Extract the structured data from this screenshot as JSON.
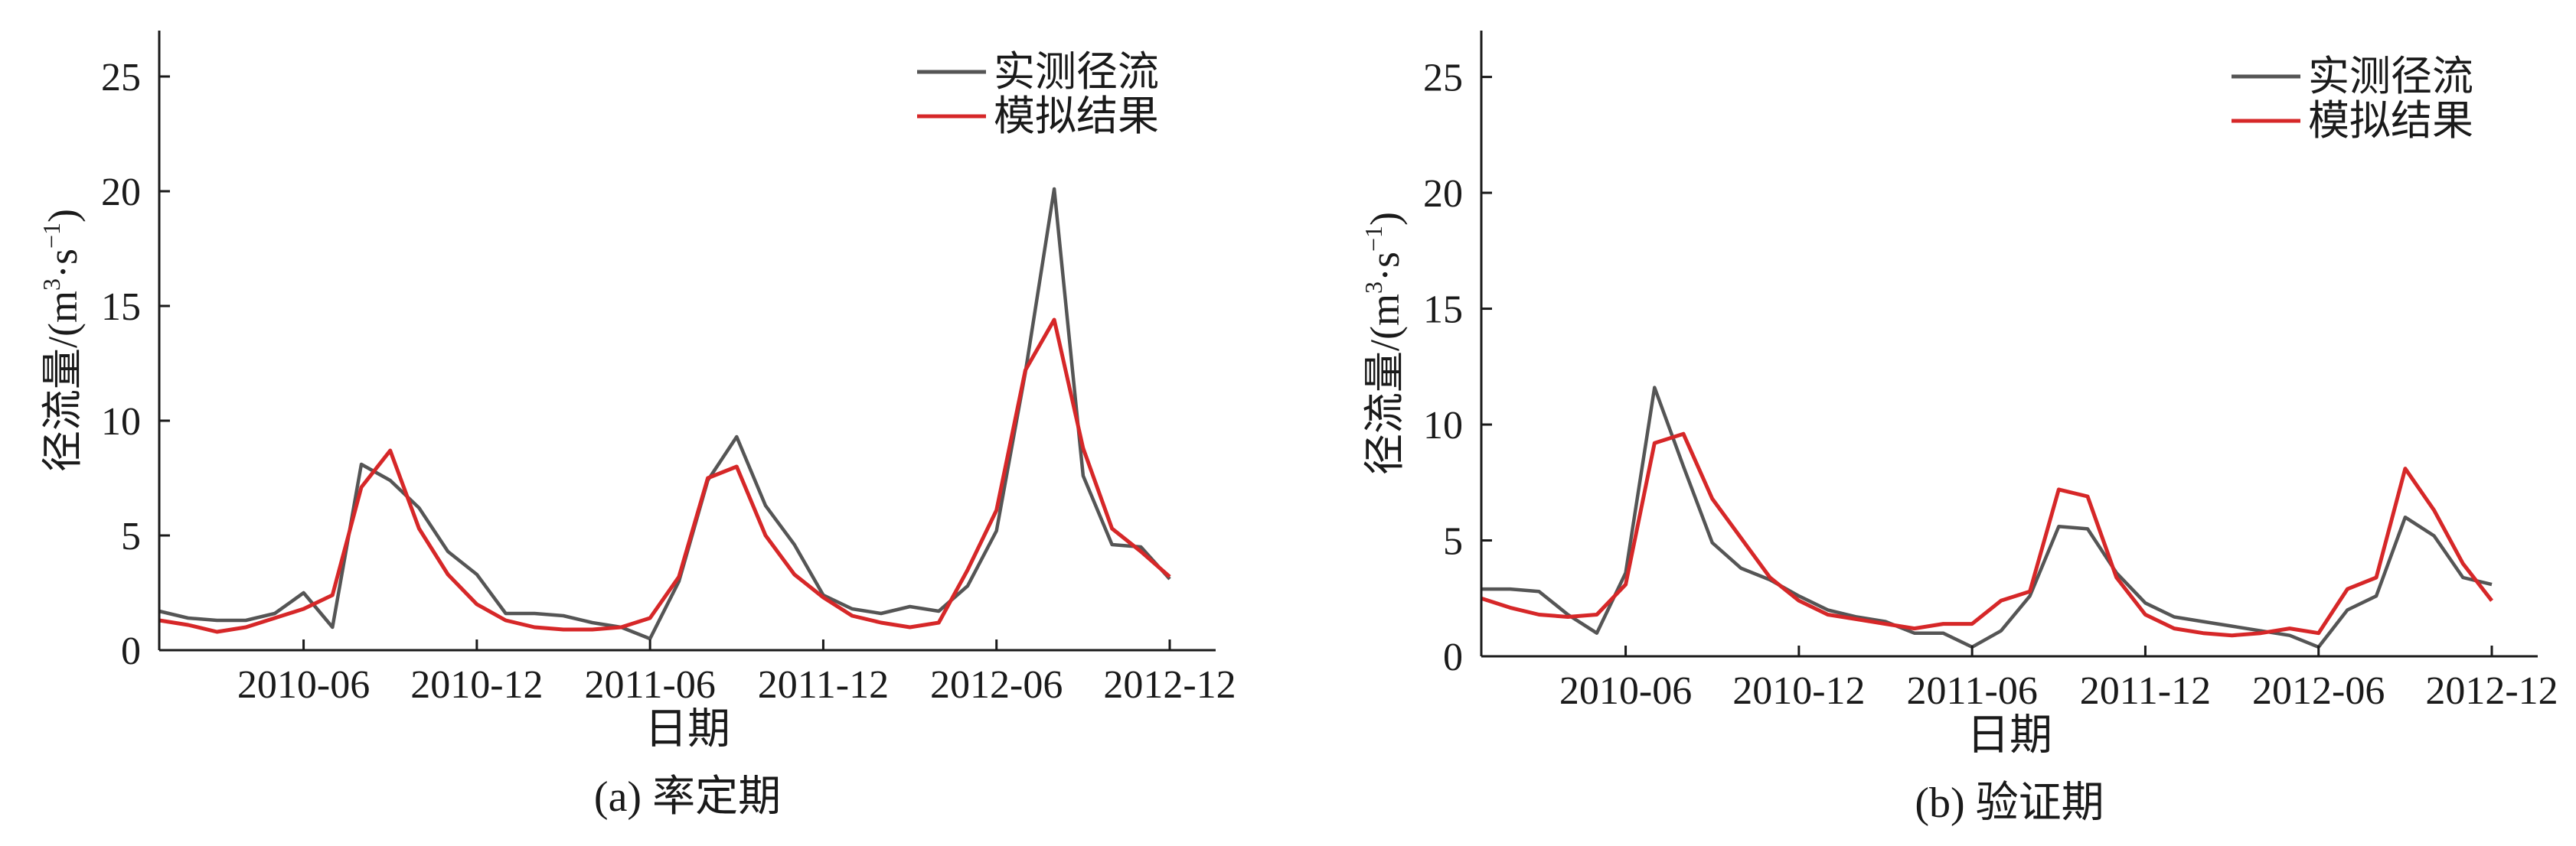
{
  "chart_data": [
    {
      "type": "line",
      "caption": "(a) 率定期",
      "xlabel": "日期",
      "ylabel_main": "径流量/(m",
      "ylabel_sup1": "3",
      "ylabel_mid": "·s",
      "ylabel_sup2": "−1",
      "ylabel_end": ")",
      "x_start": "2010-01",
      "x_end": "2012-12",
      "xticks": [
        "2010-06",
        "2010-12",
        "2011-06",
        "2011-12",
        "2012-06",
        "2012-12"
      ],
      "ylim": [
        0,
        27
      ],
      "yticks": [
        "0",
        "5",
        "10",
        "15",
        "20",
        "25"
      ],
      "legend_position": "top-right",
      "series": [
        {
          "name": "实测径流",
          "color": "#555555",
          "x": [
            "2010-01",
            "2010-02",
            "2010-03",
            "2010-04",
            "2010-05",
            "2010-06",
            "2010-07",
            "2010-08",
            "2010-09",
            "2010-10",
            "2010-11",
            "2010-12",
            "2011-01",
            "2011-02",
            "2011-03",
            "2011-04",
            "2011-05",
            "2011-06",
            "2011-07",
            "2011-08",
            "2011-09",
            "2011-10",
            "2011-11",
            "2011-12",
            "2012-01",
            "2012-02",
            "2012-03",
            "2012-04",
            "2012-05",
            "2012-06",
            "2012-07",
            "2012-08",
            "2012-09",
            "2012-10",
            "2012-11",
            "2012-12"
          ],
          "values": [
            1.7,
            1.4,
            1.3,
            1.3,
            1.6,
            2.5,
            1.0,
            8.1,
            7.4,
            6.2,
            4.3,
            3.3,
            1.6,
            1.6,
            1.5,
            1.2,
            1.0,
            0.5,
            3.0,
            7.4,
            9.3,
            6.3,
            4.6,
            2.4,
            1.8,
            1.6,
            1.9,
            1.7,
            2.8,
            5.2,
            12.1,
            20.1,
            7.6,
            4.6,
            4.5,
            3.1
          ]
        },
        {
          "name": "模拟结果",
          "color": "#d62728",
          "x": [
            "2010-01",
            "2010-02",
            "2010-03",
            "2010-04",
            "2010-05",
            "2010-06",
            "2010-07",
            "2010-08",
            "2010-09",
            "2010-10",
            "2010-11",
            "2010-12",
            "2011-01",
            "2011-02",
            "2011-03",
            "2011-04",
            "2011-05",
            "2011-06",
            "2011-07",
            "2011-08",
            "2011-09",
            "2011-10",
            "2011-11",
            "2011-12",
            "2012-01",
            "2012-02",
            "2012-03",
            "2012-04",
            "2012-05",
            "2012-06",
            "2012-07",
            "2012-08",
            "2012-09",
            "2012-10",
            "2012-11",
            "2012-12"
          ],
          "values": [
            1.3,
            1.1,
            0.8,
            1.0,
            1.4,
            1.8,
            2.4,
            7.1,
            8.7,
            5.3,
            3.3,
            2.0,
            1.3,
            1.0,
            0.9,
            0.9,
            1.0,
            1.4,
            3.2,
            7.5,
            8.0,
            5.0,
            3.3,
            2.3,
            1.5,
            1.2,
            1.0,
            1.2,
            3.5,
            6.1,
            12.2,
            14.4,
            8.8,
            5.3,
            4.3,
            3.2
          ]
        }
      ]
    },
    {
      "type": "line",
      "caption": "(b) 验证期",
      "xlabel": "日期",
      "ylabel_main": "径流量/(m",
      "ylabel_sup1": "3",
      "ylabel_mid": "·s",
      "ylabel_sup2": "−1",
      "ylabel_end": ")",
      "x_start": "2010-01",
      "x_end": "2012-12",
      "xticks": [
        "2010-06",
        "2010-12",
        "2011-06",
        "2011-12",
        "2012-06",
        "2012-12"
      ],
      "ylim": [
        0,
        27
      ],
      "yticks": [
        "0",
        "5",
        "10",
        "15",
        "20",
        "25"
      ],
      "legend_position": "top-right",
      "series": [
        {
          "name": "实测径流",
          "color": "#555555",
          "x": [
            "2010-01",
            "2010-02",
            "2010-03",
            "2010-04",
            "2010-05",
            "2010-06",
            "2010-07",
            "2010-08",
            "2010-09",
            "2010-10",
            "2010-11",
            "2010-12",
            "2011-01",
            "2011-02",
            "2011-03",
            "2011-04",
            "2011-05",
            "2011-06",
            "2011-07",
            "2011-08",
            "2011-09",
            "2011-10",
            "2011-11",
            "2011-12",
            "2012-01",
            "2012-02",
            "2012-03",
            "2012-04",
            "2012-05",
            "2012-06",
            "2012-07",
            "2012-08",
            "2012-09",
            "2012-10",
            "2012-11",
            "2012-12"
          ],
          "values": [
            2.9,
            2.9,
            2.8,
            1.8,
            1.0,
            3.6,
            11.6,
            8.2,
            4.9,
            3.8,
            3.3,
            2.6,
            2.0,
            1.7,
            1.5,
            1.0,
            1.0,
            0.4,
            1.1,
            2.6,
            5.6,
            5.5,
            3.6,
            2.3,
            1.7,
            1.5,
            1.3,
            1.1,
            0.9,
            0.4,
            2.0,
            2.6,
            6.0,
            5.2,
            3.4,
            3.1
          ]
        },
        {
          "name": "模拟结果",
          "color": "#d62728",
          "x": [
            "2010-01",
            "2010-02",
            "2010-03",
            "2010-04",
            "2010-05",
            "2010-06",
            "2010-07",
            "2010-08",
            "2010-09",
            "2010-10",
            "2010-11",
            "2010-12",
            "2011-01",
            "2011-02",
            "2011-03",
            "2011-04",
            "2011-05",
            "2011-06",
            "2011-07",
            "2011-08",
            "2011-09",
            "2011-10",
            "2011-11",
            "2011-12",
            "2012-01",
            "2012-02",
            "2012-03",
            "2012-04",
            "2012-05",
            "2012-06",
            "2012-07",
            "2012-08",
            "2012-09",
            "2012-10",
            "2012-11",
            "2012-12"
          ],
          "values": [
            2.5,
            2.1,
            1.8,
            1.7,
            1.8,
            3.1,
            9.2,
            9.6,
            6.8,
            5.1,
            3.4,
            2.4,
            1.8,
            1.6,
            1.4,
            1.2,
            1.4,
            1.4,
            2.4,
            2.8,
            7.2,
            6.9,
            3.4,
            1.8,
            1.2,
            1.0,
            0.9,
            1.0,
            1.2,
            1.0,
            2.9,
            3.4,
            8.1,
            6.3,
            4.0,
            2.4
          ]
        }
      ]
    }
  ]
}
